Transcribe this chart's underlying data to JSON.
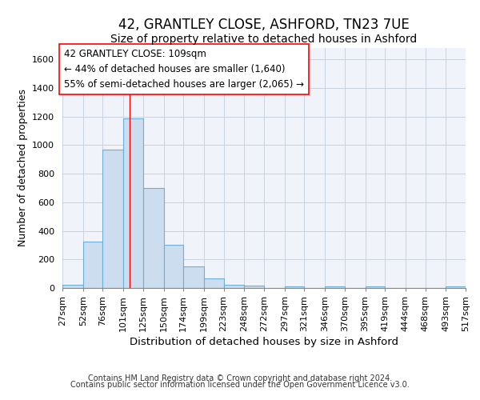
{
  "title1": "42, GRANTLEY CLOSE, ASHFORD, TN23 7UE",
  "title2": "Size of property relative to detached houses in Ashford",
  "xlabel": "Distribution of detached houses by size in Ashford",
  "ylabel": "Number of detached properties",
  "bin_edges": [
    27,
    52,
    76,
    101,
    125,
    150,
    174,
    199,
    223,
    248,
    272,
    297,
    321,
    346,
    370,
    395,
    419,
    444,
    468,
    493,
    517
  ],
  "bar_heights": [
    25,
    325,
    970,
    1190,
    700,
    300,
    150,
    70,
    25,
    15,
    0,
    10,
    0,
    10,
    0,
    10,
    0,
    0,
    0,
    10
  ],
  "bar_color": "#ccddf0",
  "bar_edge_color": "#6baed6",
  "bar_edge_width": 0.8,
  "grid_color": "#c8d4e0",
  "background_color": "#f0f4fa",
  "vline_x": 109,
  "vline_color": "red",
  "annotation_line1": "42 GRANTLEY CLOSE: 109sqm",
  "annotation_line2": "← 44% of detached houses are smaller (1,640)",
  "annotation_line3": "55% of semi-detached houses are larger (2,065) →",
  "annotation_box_color": "white",
  "annotation_border_color": "red",
  "ylim": [
    0,
    1680
  ],
  "yticks": [
    0,
    200,
    400,
    600,
    800,
    1000,
    1200,
    1400,
    1600
  ],
  "footer1": "Contains HM Land Registry data © Crown copyright and database right 2024.",
  "footer2": "Contains public sector information licensed under the Open Government Licence v3.0.",
  "title1_fontsize": 12,
  "title2_fontsize": 10,
  "xlabel_fontsize": 9.5,
  "ylabel_fontsize": 9,
  "tick_fontsize": 8,
  "annotation_fontsize": 8.5,
  "footer_fontsize": 7
}
